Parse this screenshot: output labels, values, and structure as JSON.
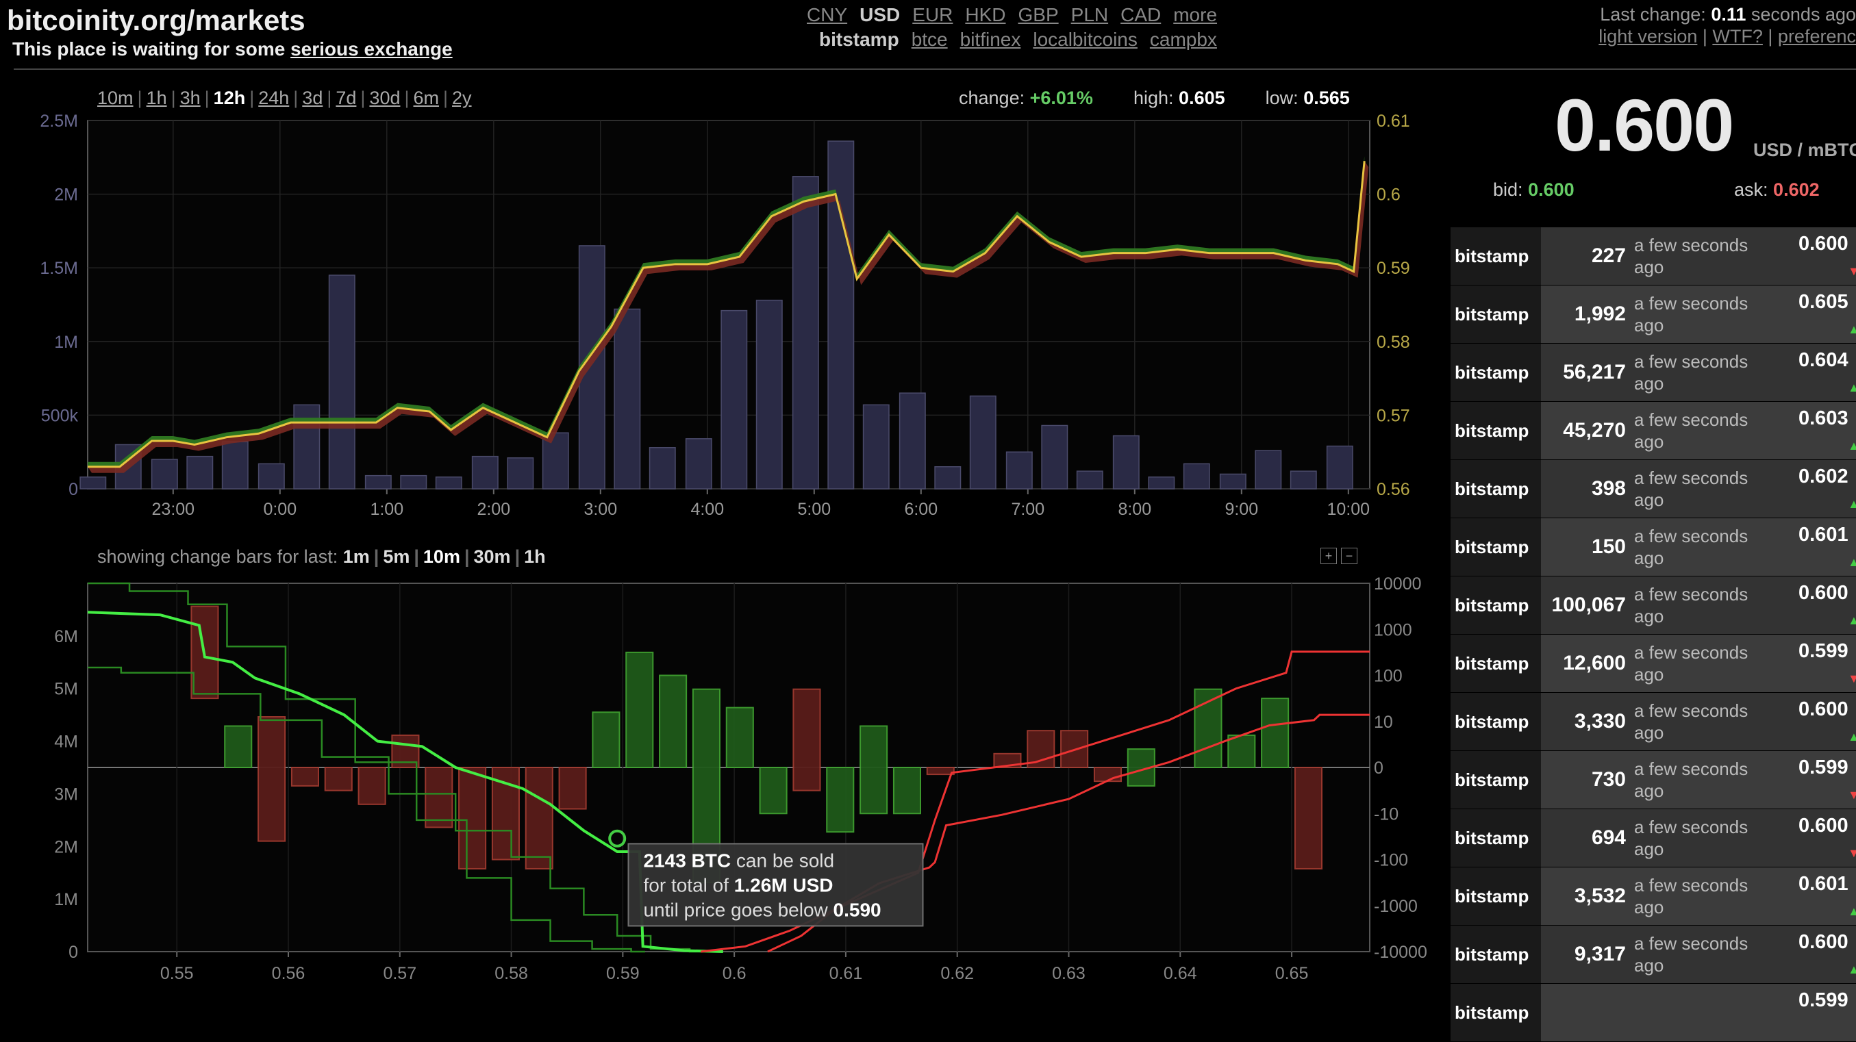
{
  "header": {
    "site_title": "bitcoinity.org/markets",
    "tagline_prefix": "This place is waiting for some ",
    "tagline_link": "serious exchange",
    "last_change_label": "Last change: ",
    "last_change_value": "0.11",
    "last_change_suffix": " seconds ago",
    "links": [
      "light version",
      "WTF?",
      "preferenc"
    ]
  },
  "currencies": [
    "CNY",
    "USD",
    "EUR",
    "HKD",
    "GBP",
    "PLN",
    "CAD",
    "more"
  ],
  "selected_currency": "USD",
  "exchanges": [
    "bitstamp",
    "btce",
    "bitfinex",
    "localbitcoins",
    "campbx"
  ],
  "selected_exchange": "bitstamp",
  "time_ranges": [
    "10m",
    "1h",
    "3h",
    "12h",
    "24h",
    "3d",
    "7d",
    "30d",
    "6m",
    "2y"
  ],
  "selected_range": "12h",
  "stats": {
    "change_label": "change:",
    "change_value": "+6.01%",
    "high_label": "high:",
    "high_value": "0.605",
    "low_label": "low:",
    "low_value": "0.565"
  },
  "ticker": {
    "price": "0.600",
    "unit": "USD / mBTC",
    "bid_label": "bid:",
    "bid_value": "0.600",
    "ask_label": "ask:",
    "ask_value": "0.602"
  },
  "change_bars": {
    "label": "showing change bars for last:",
    "options": [
      "1m",
      "5m",
      "10m",
      "30m",
      "1h"
    ],
    "selected": "10m"
  },
  "colors": {
    "price_line": "#e8c440",
    "bid_area": "#2f7a22",
    "ask_area": "#7a2a22",
    "volume_bar": "#2a2a45",
    "buy_depth": "#44ee44",
    "sell_depth": "#ee3333",
    "arrow_up": "#44cc44",
    "arrow_down": "#ee4444"
  },
  "chart_data": [
    {
      "type": "line",
      "x_tick_labels": [
        "23:00",
        "0:00",
        "1:00",
        "2:00",
        "3:00",
        "4:00",
        "5:00",
        "6:00",
        "7:00",
        "8:00",
        "9:00",
        "10:00"
      ],
      "y_left_ticks": [
        "2.5M",
        "2M",
        "1.5M",
        "1M",
        "500k",
        "0"
      ],
      "y_right_ticks": [
        "0.61",
        "0.6",
        "0.59",
        "0.58",
        "0.57",
        "0.56"
      ],
      "y_left_range": [
        0,
        2500000
      ],
      "y_right_range": [
        0.56,
        0.61
      ],
      "x_range_hours": [
        22.2,
        10.2
      ],
      "volume_x_hours": [
        22.25,
        22.58,
        22.92,
        23.25,
        23.58,
        23.92,
        0.25,
        0.58,
        0.92,
        1.25,
        1.58,
        1.92,
        2.25,
        2.58,
        2.92,
        3.25,
        3.58,
        3.92,
        4.25,
        4.58,
        4.92,
        5.25,
        5.58,
        5.92,
        6.25,
        6.58,
        6.92,
        7.25,
        7.58,
        7.92,
        8.25,
        8.58,
        8.92,
        9.25,
        9.58,
        9.92
      ],
      "volume": [
        80000,
        300000,
        200000,
        220000,
        320000,
        170000,
        570000,
        1450000,
        90000,
        90000,
        80000,
        220000,
        210000,
        380000,
        1650000,
        1220000,
        280000,
        340000,
        1210000,
        1280000,
        2120000,
        2360000,
        570000,
        650000,
        150000,
        630000,
        250000,
        430000,
        120000,
        360000,
        80000,
        170000,
        100000,
        260000,
        120000,
        290000
      ],
      "price_x_hours": [
        22.2,
        22.5,
        22.8,
        23.0,
        23.2,
        23.5,
        23.8,
        0.1,
        0.4,
        0.7,
        0.9,
        1.1,
        1.4,
        1.6,
        1.9,
        2.2,
        2.5,
        2.8,
        3.1,
        3.4,
        3.7,
        4.0,
        4.3,
        4.6,
        4.9,
        5.2,
        5.4,
        5.7,
        6.0,
        6.3,
        6.6,
        6.9,
        7.2,
        7.5,
        7.8,
        8.1,
        8.4,
        8.7,
        9.0,
        9.3,
        9.6,
        9.9,
        10.05,
        10.15
      ],
      "price": [
        0.563,
        0.563,
        0.5665,
        0.5665,
        0.566,
        0.567,
        0.5675,
        0.569,
        0.569,
        0.569,
        0.569,
        0.571,
        0.5705,
        0.568,
        0.571,
        0.569,
        0.567,
        0.576,
        0.582,
        0.59,
        0.5905,
        0.5905,
        0.5915,
        0.597,
        0.599,
        0.6,
        0.5885,
        0.5945,
        0.59,
        0.5895,
        0.592,
        0.597,
        0.5935,
        0.5915,
        0.592,
        0.592,
        0.5925,
        0.592,
        0.592,
        0.592,
        0.591,
        0.5905,
        0.5895,
        0.6045
      ]
    },
    {
      "type": "bar",
      "x_tick_labels": [
        "0.55",
        "0.56",
        "0.57",
        "0.58",
        "0.59",
        "0.6",
        "0.61",
        "0.62",
        "0.63",
        "0.64",
        "0.65"
      ],
      "y_left_ticks": [
        "6M",
        "5M",
        "4M",
        "3M",
        "2M",
        "1M",
        "0"
      ],
      "y_right_ticks": [
        "10000",
        "1000",
        "100",
        "10",
        "0",
        "-10",
        "-100",
        "-1000",
        "-10000"
      ],
      "x_range": [
        0.542,
        0.657
      ],
      "y_left_range": [
        0,
        7000000
      ],
      "change_bars": [
        {
          "x": 0.5525,
          "top": 3.5,
          "bottom": 1.5,
          "side": "bid"
        },
        {
          "x": 0.5555,
          "top": 0.9,
          "bottom": 0.0,
          "side": "buy"
        },
        {
          "x": 0.5585,
          "top": 1.1,
          "bottom": -1.6,
          "side": "bid"
        },
        {
          "x": 0.5615,
          "top": 0.0,
          "bottom": -0.4,
          "side": "bid"
        },
        {
          "x": 0.5645,
          "top": 0.0,
          "bottom": -0.5,
          "side": "bid"
        },
        {
          "x": 0.5675,
          "top": 0.0,
          "bottom": -0.8,
          "side": "bid"
        },
        {
          "x": 0.5705,
          "top": 0.7,
          "bottom": 0.0,
          "side": "bid"
        },
        {
          "x": 0.5735,
          "top": 0.0,
          "bottom": -1.3,
          "side": "bid"
        },
        {
          "x": 0.5765,
          "top": 0.0,
          "bottom": -2.2,
          "side": "bid"
        },
        {
          "x": 0.5795,
          "top": 0.0,
          "bottom": -2.0,
          "side": "bid"
        },
        {
          "x": 0.5825,
          "top": 0.0,
          "bottom": -2.2,
          "side": "bid"
        },
        {
          "x": 0.5855,
          "top": 0.0,
          "bottom": -0.9,
          "side": "bid"
        },
        {
          "x": 0.5885,
          "top": 1.2,
          "bottom": 0.0,
          "side": "buy"
        },
        {
          "x": 0.5915,
          "top": 2.5,
          "bottom": 0.0,
          "side": "buy"
        },
        {
          "x": 0.5945,
          "top": 2.0,
          "bottom": 0.0,
          "side": "buy"
        },
        {
          "x": 0.5975,
          "top": 1.7,
          "bottom": -2.5,
          "side": "buy"
        },
        {
          "x": 0.6005,
          "top": 1.3,
          "bottom": 0.0,
          "side": "buy"
        },
        {
          "x": 0.6035,
          "top": 0.0,
          "bottom": -1.0,
          "side": "buy"
        },
        {
          "x": 0.6065,
          "top": 1.7,
          "bottom": -0.5,
          "side": "bid"
        },
        {
          "x": 0.6095,
          "top": 0.0,
          "bottom": -1.4,
          "side": "buy"
        },
        {
          "x": 0.6125,
          "top": 0.9,
          "bottom": -1.0,
          "side": "buy"
        },
        {
          "x": 0.6155,
          "top": 0.0,
          "bottom": -1.0,
          "side": "buy"
        },
        {
          "x": 0.6185,
          "top": 0.0,
          "bottom": -0.15,
          "side": "bid"
        },
        {
          "x": 0.6245,
          "top": 0.3,
          "bottom": 0.0,
          "side": "bid"
        },
        {
          "x": 0.6275,
          "top": 0.8,
          "bottom": 0.0,
          "side": "bid"
        },
        {
          "x": 0.6305,
          "top": 0.8,
          "bottom": 0.0,
          "side": "bid"
        },
        {
          "x": 0.6335,
          "top": 0.0,
          "bottom": -0.3,
          "side": "bid"
        },
        {
          "x": 0.6365,
          "top": 0.4,
          "bottom": -0.4,
          "side": "buy"
        },
        {
          "x": 0.6425,
          "top": 1.7,
          "bottom": 0.0,
          "side": "buy"
        },
        {
          "x": 0.6455,
          "top": 0.7,
          "bottom": 0.0,
          "side": "buy"
        },
        {
          "x": 0.6485,
          "top": 1.5,
          "bottom": 0.0,
          "side": "buy"
        },
        {
          "x": 0.6515,
          "top": 0.0,
          "bottom": -2.2,
          "side": "bid"
        }
      ],
      "bid_depth_bright": [
        [
          0.542,
          6.45
        ],
        [
          0.5485,
          6.4
        ],
        [
          0.552,
          6.2
        ],
        [
          0.5525,
          5.6
        ],
        [
          0.555,
          5.5
        ],
        [
          0.557,
          5.2
        ],
        [
          0.561,
          4.9
        ],
        [
          0.565,
          4.5
        ],
        [
          0.568,
          4.0
        ],
        [
          0.572,
          3.9
        ],
        [
          0.575,
          3.5
        ],
        [
          0.578,
          3.3
        ],
        [
          0.581,
          3.1
        ],
        [
          0.5835,
          2.8
        ],
        [
          0.5865,
          2.3
        ],
        [
          0.5895,
          1.9
        ],
        [
          0.5915,
          1.9
        ],
        [
          0.5918,
          0.1
        ],
        [
          0.5955,
          0.02
        ],
        [
          0.599,
          0.0
        ]
      ],
      "bid_depth_dark1": [
        [
          0.542,
          5.4
        ],
        [
          0.548,
          5.3
        ],
        [
          0.555,
          4.9
        ],
        [
          0.56,
          4.4
        ],
        [
          0.566,
          3.7
        ],
        [
          0.572,
          3.0
        ],
        [
          0.578,
          2.3
        ],
        [
          0.582,
          1.8
        ],
        [
          0.585,
          1.2
        ],
        [
          0.588,
          0.7
        ],
        [
          0.591,
          0.3
        ],
        [
          0.594,
          0.05
        ],
        [
          0.598,
          0.0
        ]
      ],
      "bid_depth_dark2": [
        [
          0.542,
          7.0
        ],
        [
          0.5495,
          6.85
        ],
        [
          0.5525,
          6.6
        ],
        [
          0.5565,
          5.8
        ],
        [
          0.563,
          4.8
        ],
        [
          0.569,
          3.6
        ],
        [
          0.574,
          2.5
        ],
        [
          0.578,
          1.4
        ],
        [
          0.582,
          0.6
        ],
        [
          0.585,
          0.2
        ],
        [
          0.5895,
          0.05
        ],
        [
          0.592,
          0.0
        ]
      ],
      "ask_depth_1": [
        [
          0.597,
          0.0
        ],
        [
          0.601,
          0.1
        ],
        [
          0.605,
          0.4
        ],
        [
          0.609,
          0.8
        ],
        [
          0.613,
          1.3
        ],
        [
          0.6175,
          1.6
        ],
        [
          0.618,
          1.7
        ],
        [
          0.619,
          2.4
        ],
        [
          0.624,
          2.6
        ],
        [
          0.63,
          2.9
        ],
        [
          0.634,
          3.3
        ],
        [
          0.639,
          3.6
        ],
        [
          0.644,
          4.0
        ],
        [
          0.648,
          4.3
        ],
        [
          0.652,
          4.4
        ],
        [
          0.6525,
          4.5
        ],
        [
          0.657,
          4.5
        ]
      ],
      "ask_depth_2": [
        [
          0.603,
          0.0
        ],
        [
          0.606,
          0.3
        ],
        [
          0.609,
          0.8
        ],
        [
          0.6165,
          1.5
        ],
        [
          0.618,
          2.5
        ],
        [
          0.6195,
          3.4
        ],
        [
          0.627,
          3.6
        ],
        [
          0.633,
          4.0
        ],
        [
          0.639,
          4.4
        ],
        [
          0.645,
          5.0
        ],
        [
          0.6495,
          5.3
        ],
        [
          0.65,
          5.7
        ],
        [
          0.657,
          5.7
        ]
      ]
    }
  ],
  "tooltip": {
    "line1_bold": "2143 BTC",
    "line1_rest": " can be sold",
    "line2_pre": "for total of ",
    "line2_bold": "1.26M USD",
    "line3_pre": "until price goes below ",
    "line3_bold": "0.590"
  },
  "trades": [
    {
      "exchange": "bitstamp",
      "amount": "227",
      "time": "a few seconds ago",
      "price": "0.600",
      "dir": "down"
    },
    {
      "exchange": "bitstamp",
      "amount": "1,992",
      "time": "a few seconds ago",
      "price": "0.605",
      "dir": "up"
    },
    {
      "exchange": "bitstamp",
      "amount": "56,217",
      "time": "a few seconds ago",
      "price": "0.604",
      "dir": "up"
    },
    {
      "exchange": "bitstamp",
      "amount": "45,270",
      "time": "a few seconds ago",
      "price": "0.603",
      "dir": "up"
    },
    {
      "exchange": "bitstamp",
      "amount": "398",
      "time": "a few seconds ago",
      "price": "0.602",
      "dir": "up"
    },
    {
      "exchange": "bitstamp",
      "amount": "150",
      "time": "a few seconds ago",
      "price": "0.601",
      "dir": "up"
    },
    {
      "exchange": "bitstamp",
      "amount": "100,067",
      "time": "a few seconds ago",
      "price": "0.600",
      "dir": "up"
    },
    {
      "exchange": "bitstamp",
      "amount": "12,600",
      "time": "a few seconds ago",
      "price": "0.599",
      "dir": "down"
    },
    {
      "exchange": "bitstamp",
      "amount": "3,330",
      "time": "a few seconds ago",
      "price": "0.600",
      "dir": "up"
    },
    {
      "exchange": "bitstamp",
      "amount": "730",
      "time": "a few seconds ago",
      "price": "0.599",
      "dir": "down"
    },
    {
      "exchange": "bitstamp",
      "amount": "694",
      "time": "a few seconds ago",
      "price": "0.600",
      "dir": "down"
    },
    {
      "exchange": "bitstamp",
      "amount": "3,532",
      "time": "a few seconds ago",
      "price": "0.601",
      "dir": "up"
    },
    {
      "exchange": "bitstamp",
      "amount": "9,317",
      "time": "a few seconds ago",
      "price": "0.600",
      "dir": "up"
    },
    {
      "exchange": "bitstamp",
      "amount": "",
      "time": "",
      "price": "0.599",
      "dir": ""
    }
  ]
}
